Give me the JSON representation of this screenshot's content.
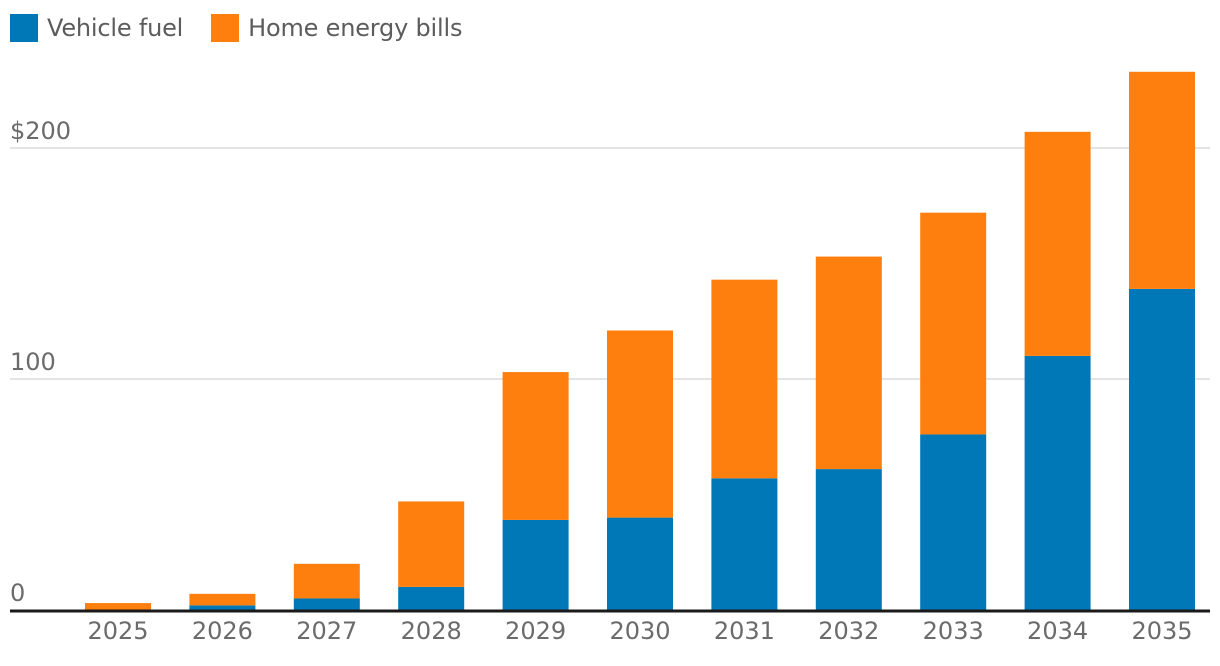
{
  "chart_data": {
    "type": "bar",
    "stacked": true,
    "categories": [
      "2025",
      "2026",
      "2027",
      "2028",
      "2029",
      "2030",
      "2031",
      "2032",
      "2033",
      "2034",
      "2035"
    ],
    "series": [
      {
        "name": "Vehicle fuel",
        "color": "#0077b6",
        "values": [
          0,
          2,
          5,
          10,
          39,
          40,
          57,
          61,
          76,
          110,
          139
        ]
      },
      {
        "name": "Home energy bills",
        "color": "#ff7f0e",
        "values": [
          3,
          5,
          15,
          37,
          64,
          81,
          86,
          92,
          96,
          97,
          94
        ]
      }
    ],
    "title": "",
    "xlabel": "",
    "ylabel": "",
    "ylim": [
      0,
      230
    ],
    "yticks": [
      {
        "value": 0,
        "label": "0"
      },
      {
        "value": 100,
        "label": "100"
      },
      {
        "value": 200,
        "label": "$200"
      }
    ],
    "grid": true,
    "legend_position": "top-left"
  }
}
